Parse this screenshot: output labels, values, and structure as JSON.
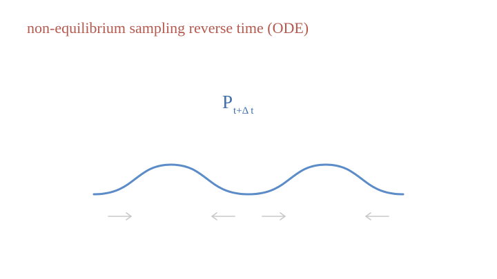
{
  "slide": {
    "title": "non-equilibrium sampling reverse time (ODE)",
    "density_label": {
      "main": "P",
      "subscript": "t+Δ t"
    }
  },
  "diagram": {
    "curve_color": "#5b8cc8",
    "arrow_color": "#c8c8c8",
    "arrows": [
      {
        "direction": "right"
      },
      {
        "direction": "left"
      },
      {
        "direction": "right"
      },
      {
        "direction": "left"
      }
    ]
  }
}
